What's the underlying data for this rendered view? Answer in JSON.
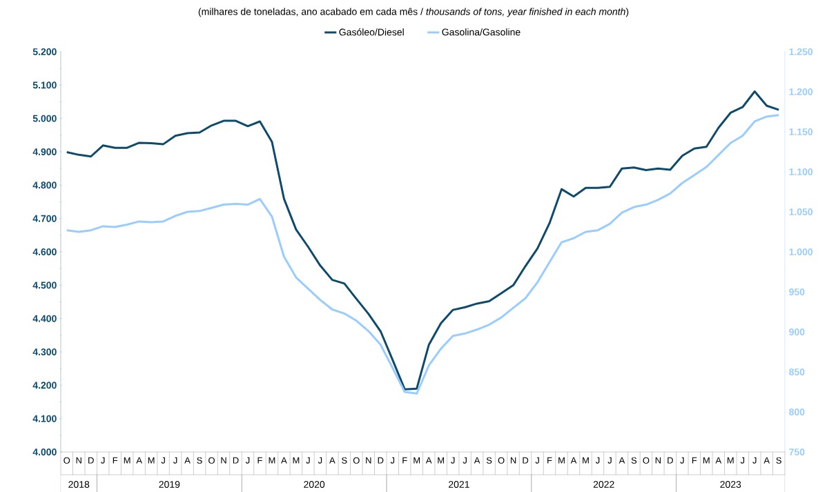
{
  "chart_data": {
    "type": "line",
    "title": "(milhares de toneladas, ano acabado em cada mês / *thousands of tons, year finished in each month*)",
    "categories": [
      "O",
      "N",
      "D",
      "J",
      "F",
      "M",
      "A",
      "M",
      "J",
      "J",
      "A",
      "S",
      "O",
      "N",
      "D",
      "J",
      "F",
      "M",
      "A",
      "M",
      "J",
      "J",
      "A",
      "S",
      "O",
      "N",
      "D",
      "J",
      "F",
      "M",
      "A",
      "M",
      "J",
      "J",
      "A",
      "S",
      "O",
      "N",
      "D",
      "J",
      "F",
      "M",
      "A",
      "M",
      "J",
      "J",
      "A",
      "S",
      "O",
      "N",
      "D",
      "J",
      "F",
      "M",
      "A",
      "M",
      "J",
      "J",
      "A",
      "S"
    ],
    "series": [
      {
        "name": "Gasóleo/Diesel",
        "color": "#0d4a6b",
        "values": [
          4899,
          4891,
          4886,
          4919,
          4912,
          4912,
          4927,
          4926,
          4923,
          4948,
          4956,
          4958,
          4979,
          4993,
          4993,
          4977,
          4991,
          4930,
          4759,
          4667,
          4615,
          4559,
          4516,
          4505,
          4459,
          4414,
          4362,
          4276,
          4188,
          4190,
          4321,
          4386,
          4426,
          4434,
          4445,
          4452,
          4476,
          4500,
          4557,
          4610,
          4686,
          4788,
          4766,
          4792,
          4792,
          4795,
          4850,
          4853,
          4845,
          4850,
          4846,
          4888,
          4910,
          4915,
          4972,
          5017,
          5034,
          5081,
          5038,
          5026
        ]
      },
      {
        "name": "Gasolina/Gasoline",
        "color": "#99ccff",
        "axis": "y2",
        "values": [
          1027,
          1025,
          1027,
          1032,
          1031,
          1034,
          1038,
          1037,
          1038,
          1045,
          1050,
          1051,
          1055,
          1059,
          1060,
          1059,
          1066,
          1044,
          994,
          968,
          954,
          940,
          928,
          923,
          914,
          901,
          884,
          855,
          825,
          823,
          858,
          879,
          895,
          898,
          903,
          909,
          918,
          930,
          942,
          962,
          987,
          1012,
          1017,
          1025,
          1027,
          1035,
          1049,
          1056,
          1059,
          1065,
          1073,
          1086,
          1096,
          1106,
          1121,
          1136,
          1145,
          1163,
          1169,
          1171
        ]
      }
    ],
    "ylim": [
      4000,
      5200
    ],
    "yticks": [
      {
        "value": 4000,
        "label": "4.000"
      },
      {
        "value": 4100,
        "label": "4.100"
      },
      {
        "value": 4200,
        "label": "4.200"
      },
      {
        "value": 4300,
        "label": "4.300"
      },
      {
        "value": 4400,
        "label": "4.400"
      },
      {
        "value": 4500,
        "label": "4.500"
      },
      {
        "value": 4600,
        "label": "4.600"
      },
      {
        "value": 4700,
        "label": "4.700"
      },
      {
        "value": 4800,
        "label": "4.800"
      },
      {
        "value": 4900,
        "label": "4.900"
      },
      {
        "value": 5000,
        "label": "5.000"
      },
      {
        "value": 5100,
        "label": "5.100"
      },
      {
        "value": 5200,
        "label": "5.200"
      }
    ],
    "y2lim": [
      750,
      1250
    ],
    "y2ticks": [
      750,
      800,
      850,
      900,
      950,
      {
        "value": 1000,
        "label": "1.000"
      },
      {
        "value": 1050,
        "label": "1.050"
      },
      {
        "value": 1100,
        "label": "1.100"
      },
      {
        "value": 1150,
        "label": "1.150"
      },
      {
        "value": 1200,
        "label": "1.200"
      },
      {
        "value": 1250,
        "label": "1.250"
      }
    ],
    "annotations": [
      "2018",
      "2019",
      "2020",
      "2021",
      "2022",
      "2023"
    ],
    "legend": "top",
    "grid": false,
    "marker": "none",
    "line_style": "solid"
  }
}
